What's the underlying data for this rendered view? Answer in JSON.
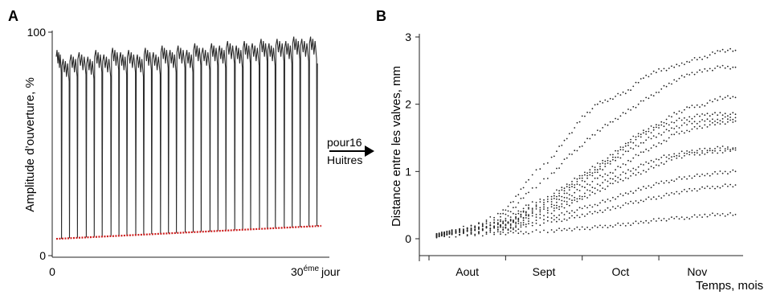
{
  "chart_data": [
    {
      "panel": "A",
      "type": "line",
      "ylabel": "Amplitude d’ouverture, %",
      "ytick_labels": [
        "100",
        "0"
      ],
      "yticks": [
        100,
        0
      ],
      "ylim": [
        0,
        100
      ],
      "x_start_label": "0",
      "x_end_label": {
        "num": "30",
        "sup": "éme",
        "unit": "jour"
      },
      "xlim": [
        0,
        30
      ],
      "series": [
        {
          "description_color": "#222222",
          "cycles": [
            {
              "day": 0.6,
              "min": 7.5,
              "max": 92
            },
            {
              "day": 1.5,
              "min": 7.8,
              "max": 88
            },
            {
              "day": 2.4,
              "min": 8.0,
              "max": 90
            },
            {
              "day": 3.4,
              "min": 8.2,
              "max": 91
            },
            {
              "day": 4.3,
              "min": 8.4,
              "max": 89
            },
            {
              "day": 5.2,
              "min": 8.6,
              "max": 92
            },
            {
              "day": 6.2,
              "min": 8.8,
              "max": 90
            },
            {
              "day": 7.1,
              "min": 9.0,
              "max": 93
            },
            {
              "day": 8.0,
              "min": 9.1,
              "max": 91
            },
            {
              "day": 9.0,
              "min": 9.3,
              "max": 92
            },
            {
              "day": 9.9,
              "min": 9.5,
              "max": 90
            },
            {
              "day": 10.8,
              "min": 9.7,
              "max": 93
            },
            {
              "day": 11.8,
              "min": 9.9,
              "max": 91
            },
            {
              "day": 12.7,
              "min": 10.0,
              "max": 94
            },
            {
              "day": 13.6,
              "min": 10.2,
              "max": 92
            },
            {
              "day": 14.6,
              "min": 10.4,
              "max": 94
            },
            {
              "day": 15.5,
              "min": 10.6,
              "max": 92
            },
            {
              "day": 16.4,
              "min": 10.8,
              "max": 95
            },
            {
              "day": 17.4,
              "min": 10.9,
              "max": 93
            },
            {
              "day": 18.3,
              "min": 11.1,
              "max": 95
            },
            {
              "day": 19.2,
              "min": 11.3,
              "max": 94
            },
            {
              "day": 20.2,
              "min": 11.5,
              "max": 96
            },
            {
              "day": 21.1,
              "min": 11.7,
              "max": 94
            },
            {
              "day": 22.0,
              "min": 11.8,
              "max": 96
            },
            {
              "day": 23.0,
              "min": 12.0,
              "max": 95
            },
            {
              "day": 23.9,
              "min": 12.2,
              "max": 97
            },
            {
              "day": 24.8,
              "min": 12.4,
              "max": 95
            },
            {
              "day": 25.8,
              "min": 12.6,
              "max": 97
            },
            {
              "day": 26.7,
              "min": 12.7,
              "max": 96
            },
            {
              "day": 27.6,
              "min": 12.9,
              "max": 98
            },
            {
              "day": 28.6,
              "min": 13.1,
              "max": 97
            },
            {
              "day": 29.5,
              "min": 13.3,
              "max": 98
            }
          ]
        }
      ],
      "trend_line": {
        "color": "#cc1a1a",
        "from": [
          0,
          7.5
        ],
        "to": [
          30,
          13.3
        ]
      }
    },
    {
      "panel": "B",
      "type": "scatter",
      "xlabel": "Temps, mois",
      "ylabel": "Distance entre les valves, mm",
      "categories": [
        "Aout",
        "Sept",
        "Oct",
        "Nov"
      ],
      "yticks": [
        "0",
        "1",
        "2",
        "3"
      ],
      "ylim": [
        0,
        3
      ],
      "xlim": [
        0,
        4.1
      ],
      "series": [
        {
          "values": [
            [
              0.1,
              0.05
            ],
            [
              0.3,
              0.12
            ],
            [
              0.6,
              0.2
            ],
            [
              0.9,
              0.35
            ],
            [
              1.1,
              0.55
            ],
            [
              1.3,
              0.9
            ],
            [
              1.6,
              1.2
            ],
            [
              1.8,
              1.5
            ],
            [
              2.0,
              1.8
            ],
            [
              2.2,
              2.0
            ],
            [
              2.4,
              2.1
            ],
            [
              2.6,
              2.2
            ],
            [
              2.8,
              2.4
            ],
            [
              3.0,
              2.5
            ],
            [
              3.2,
              2.55
            ],
            [
              3.4,
              2.65
            ],
            [
              3.6,
              2.7
            ],
            [
              3.8,
              2.8
            ],
            [
              4.0,
              2.8
            ]
          ]
        },
        {
          "values": [
            [
              0.1,
              0.05
            ],
            [
              0.3,
              0.1
            ],
            [
              0.6,
              0.18
            ],
            [
              0.9,
              0.3
            ],
            [
              1.1,
              0.45
            ],
            [
              1.3,
              0.7
            ],
            [
              1.6,
              0.95
            ],
            [
              1.8,
              1.2
            ],
            [
              2.0,
              1.4
            ],
            [
              2.2,
              1.6
            ],
            [
              2.4,
              1.75
            ],
            [
              2.6,
              1.9
            ],
            [
              2.8,
              2.05
            ],
            [
              3.0,
              2.2
            ],
            [
              3.2,
              2.35
            ],
            [
              3.4,
              2.45
            ],
            [
              3.6,
              2.5
            ],
            [
              3.8,
              2.55
            ],
            [
              4.0,
              2.55
            ]
          ]
        },
        {
          "values": [
            [
              0.1,
              0.05
            ],
            [
              0.3,
              0.1
            ],
            [
              0.6,
              0.15
            ],
            [
              0.9,
              0.25
            ],
            [
              1.1,
              0.35
            ],
            [
              1.3,
              0.5
            ],
            [
              1.6,
              0.65
            ],
            [
              1.8,
              0.8
            ],
            [
              2.0,
              0.95
            ],
            [
              2.2,
              1.1
            ],
            [
              2.4,
              1.25
            ],
            [
              2.6,
              1.45
            ],
            [
              2.8,
              1.6
            ],
            [
              3.0,
              1.7
            ],
            [
              3.2,
              1.85
            ],
            [
              3.4,
              1.95
            ],
            [
              3.6,
              2.0
            ],
            [
              3.8,
              2.1
            ],
            [
              4.0,
              2.1
            ]
          ]
        },
        {
          "values": [
            [
              0.1,
              0.05
            ],
            [
              0.3,
              0.1
            ],
            [
              0.6,
              0.15
            ],
            [
              0.9,
              0.22
            ],
            [
              1.1,
              0.3
            ],
            [
              1.3,
              0.45
            ],
            [
              1.6,
              0.6
            ],
            [
              1.8,
              0.75
            ],
            [
              2.0,
              0.9
            ],
            [
              2.2,
              1.05
            ],
            [
              2.4,
              1.2
            ],
            [
              2.6,
              1.4
            ],
            [
              2.8,
              1.55
            ],
            [
              3.0,
              1.65
            ],
            [
              3.2,
              1.75
            ],
            [
              3.4,
              1.8
            ],
            [
              3.6,
              1.85
            ],
            [
              3.8,
              1.85
            ],
            [
              4.0,
              1.85
            ]
          ]
        },
        {
          "values": [
            [
              0.1,
              0.05
            ],
            [
              0.3,
              0.1
            ],
            [
              0.6,
              0.15
            ],
            [
              0.9,
              0.2
            ],
            [
              1.1,
              0.28
            ],
            [
              1.3,
              0.42
            ],
            [
              1.6,
              0.55
            ],
            [
              1.8,
              0.7
            ],
            [
              2.0,
              0.85
            ],
            [
              2.2,
              1.0
            ],
            [
              2.4,
              1.15
            ],
            [
              2.6,
              1.3
            ],
            [
              2.8,
              1.45
            ],
            [
              3.0,
              1.55
            ],
            [
              3.2,
              1.65
            ],
            [
              3.4,
              1.72
            ],
            [
              3.6,
              1.75
            ],
            [
              3.8,
              1.78
            ],
            [
              4.0,
              1.8
            ]
          ]
        },
        {
          "values": [
            [
              0.1,
              0.05
            ],
            [
              0.3,
              0.1
            ],
            [
              0.6,
              0.14
            ],
            [
              0.9,
              0.2
            ],
            [
              1.1,
              0.25
            ],
            [
              1.3,
              0.38
            ],
            [
              1.6,
              0.5
            ],
            [
              1.8,
              0.62
            ],
            [
              2.0,
              0.75
            ],
            [
              2.2,
              0.9
            ],
            [
              2.4,
              1.0
            ],
            [
              2.6,
              1.15
            ],
            [
              2.8,
              1.3
            ],
            [
              3.0,
              1.4
            ],
            [
              3.2,
              1.55
            ],
            [
              3.4,
              1.62
            ],
            [
              3.6,
              1.68
            ],
            [
              3.8,
              1.72
            ],
            [
              4.0,
              1.75
            ]
          ]
        },
        {
          "values": [
            [
              0.1,
              0.05
            ],
            [
              0.3,
              0.1
            ],
            [
              0.6,
              0.14
            ],
            [
              0.9,
              0.2
            ],
            [
              1.1,
              0.25
            ],
            [
              1.3,
              0.35
            ],
            [
              1.6,
              0.45
            ],
            [
              1.8,
              0.55
            ],
            [
              2.0,
              0.65
            ],
            [
              2.2,
              0.8
            ],
            [
              2.4,
              0.9
            ],
            [
              2.6,
              1.0
            ],
            [
              2.8,
              1.1
            ],
            [
              3.0,
              1.2
            ],
            [
              3.2,
              1.25
            ],
            [
              3.4,
              1.3
            ],
            [
              3.6,
              1.32
            ],
            [
              3.8,
              1.35
            ],
            [
              4.0,
              1.35
            ]
          ]
        },
        {
          "values": [
            [
              0.1,
              0.05
            ],
            [
              0.3,
              0.1
            ],
            [
              0.6,
              0.12
            ],
            [
              0.9,
              0.18
            ],
            [
              1.1,
              0.22
            ],
            [
              1.3,
              0.3
            ],
            [
              1.6,
              0.4
            ],
            [
              1.8,
              0.5
            ],
            [
              2.0,
              0.6
            ],
            [
              2.2,
              0.7
            ],
            [
              2.4,
              0.82
            ],
            [
              2.6,
              0.92
            ],
            [
              2.8,
              1.0
            ],
            [
              3.0,
              1.1
            ],
            [
              3.2,
              1.2
            ],
            [
              3.4,
              1.25
            ],
            [
              3.6,
              1.28
            ],
            [
              3.8,
              1.3
            ],
            [
              4.0,
              1.32
            ]
          ]
        },
        {
          "values": [
            [
              0.1,
              0.05
            ],
            [
              0.3,
              0.08
            ],
            [
              0.6,
              0.1
            ],
            [
              0.9,
              0.14
            ],
            [
              1.1,
              0.18
            ],
            [
              1.3,
              0.25
            ],
            [
              1.6,
              0.32
            ],
            [
              1.8,
              0.38
            ],
            [
              2.0,
              0.45
            ],
            [
              2.2,
              0.52
            ],
            [
              2.4,
              0.6
            ],
            [
              2.6,
              0.68
            ],
            [
              2.8,
              0.75
            ],
            [
              3.0,
              0.82
            ],
            [
              3.2,
              0.88
            ],
            [
              3.4,
              0.92
            ],
            [
              3.6,
              0.95
            ],
            [
              3.8,
              0.98
            ],
            [
              4.0,
              1.0
            ]
          ]
        },
        {
          "values": [
            [
              0.1,
              0.05
            ],
            [
              0.3,
              0.07
            ],
            [
              0.6,
              0.09
            ],
            [
              0.9,
              0.12
            ],
            [
              1.1,
              0.15
            ],
            [
              1.3,
              0.2
            ],
            [
              1.6,
              0.25
            ],
            [
              1.8,
              0.3
            ],
            [
              2.0,
              0.35
            ],
            [
              2.2,
              0.4
            ],
            [
              2.4,
              0.45
            ],
            [
              2.6,
              0.52
            ],
            [
              2.8,
              0.58
            ],
            [
              3.0,
              0.62
            ],
            [
              3.2,
              0.68
            ],
            [
              3.4,
              0.72
            ],
            [
              3.6,
              0.75
            ],
            [
              3.8,
              0.78
            ],
            [
              4.0,
              0.8
            ]
          ]
        },
        {
          "values": [
            [
              0.1,
              0.04
            ],
            [
              0.3,
              0.05
            ],
            [
              0.6,
              0.06
            ],
            [
              0.9,
              0.08
            ],
            [
              1.1,
              0.09
            ],
            [
              1.3,
              0.1
            ],
            [
              1.6,
              0.12
            ],
            [
              1.8,
              0.14
            ],
            [
              2.0,
              0.15
            ],
            [
              2.2,
              0.17
            ],
            [
              2.4,
              0.2
            ],
            [
              2.6,
              0.22
            ],
            [
              2.8,
              0.25
            ],
            [
              3.0,
              0.28
            ],
            [
              3.2,
              0.3
            ],
            [
              3.4,
              0.32
            ],
            [
              3.6,
              0.35
            ],
            [
              3.8,
              0.36
            ],
            [
              4.0,
              0.36
            ]
          ]
        }
      ]
    }
  ],
  "panel_labels": {
    "a": "A",
    "b": "B"
  },
  "arrow": {
    "line1": "pour16",
    "line2": "Huitres"
  }
}
